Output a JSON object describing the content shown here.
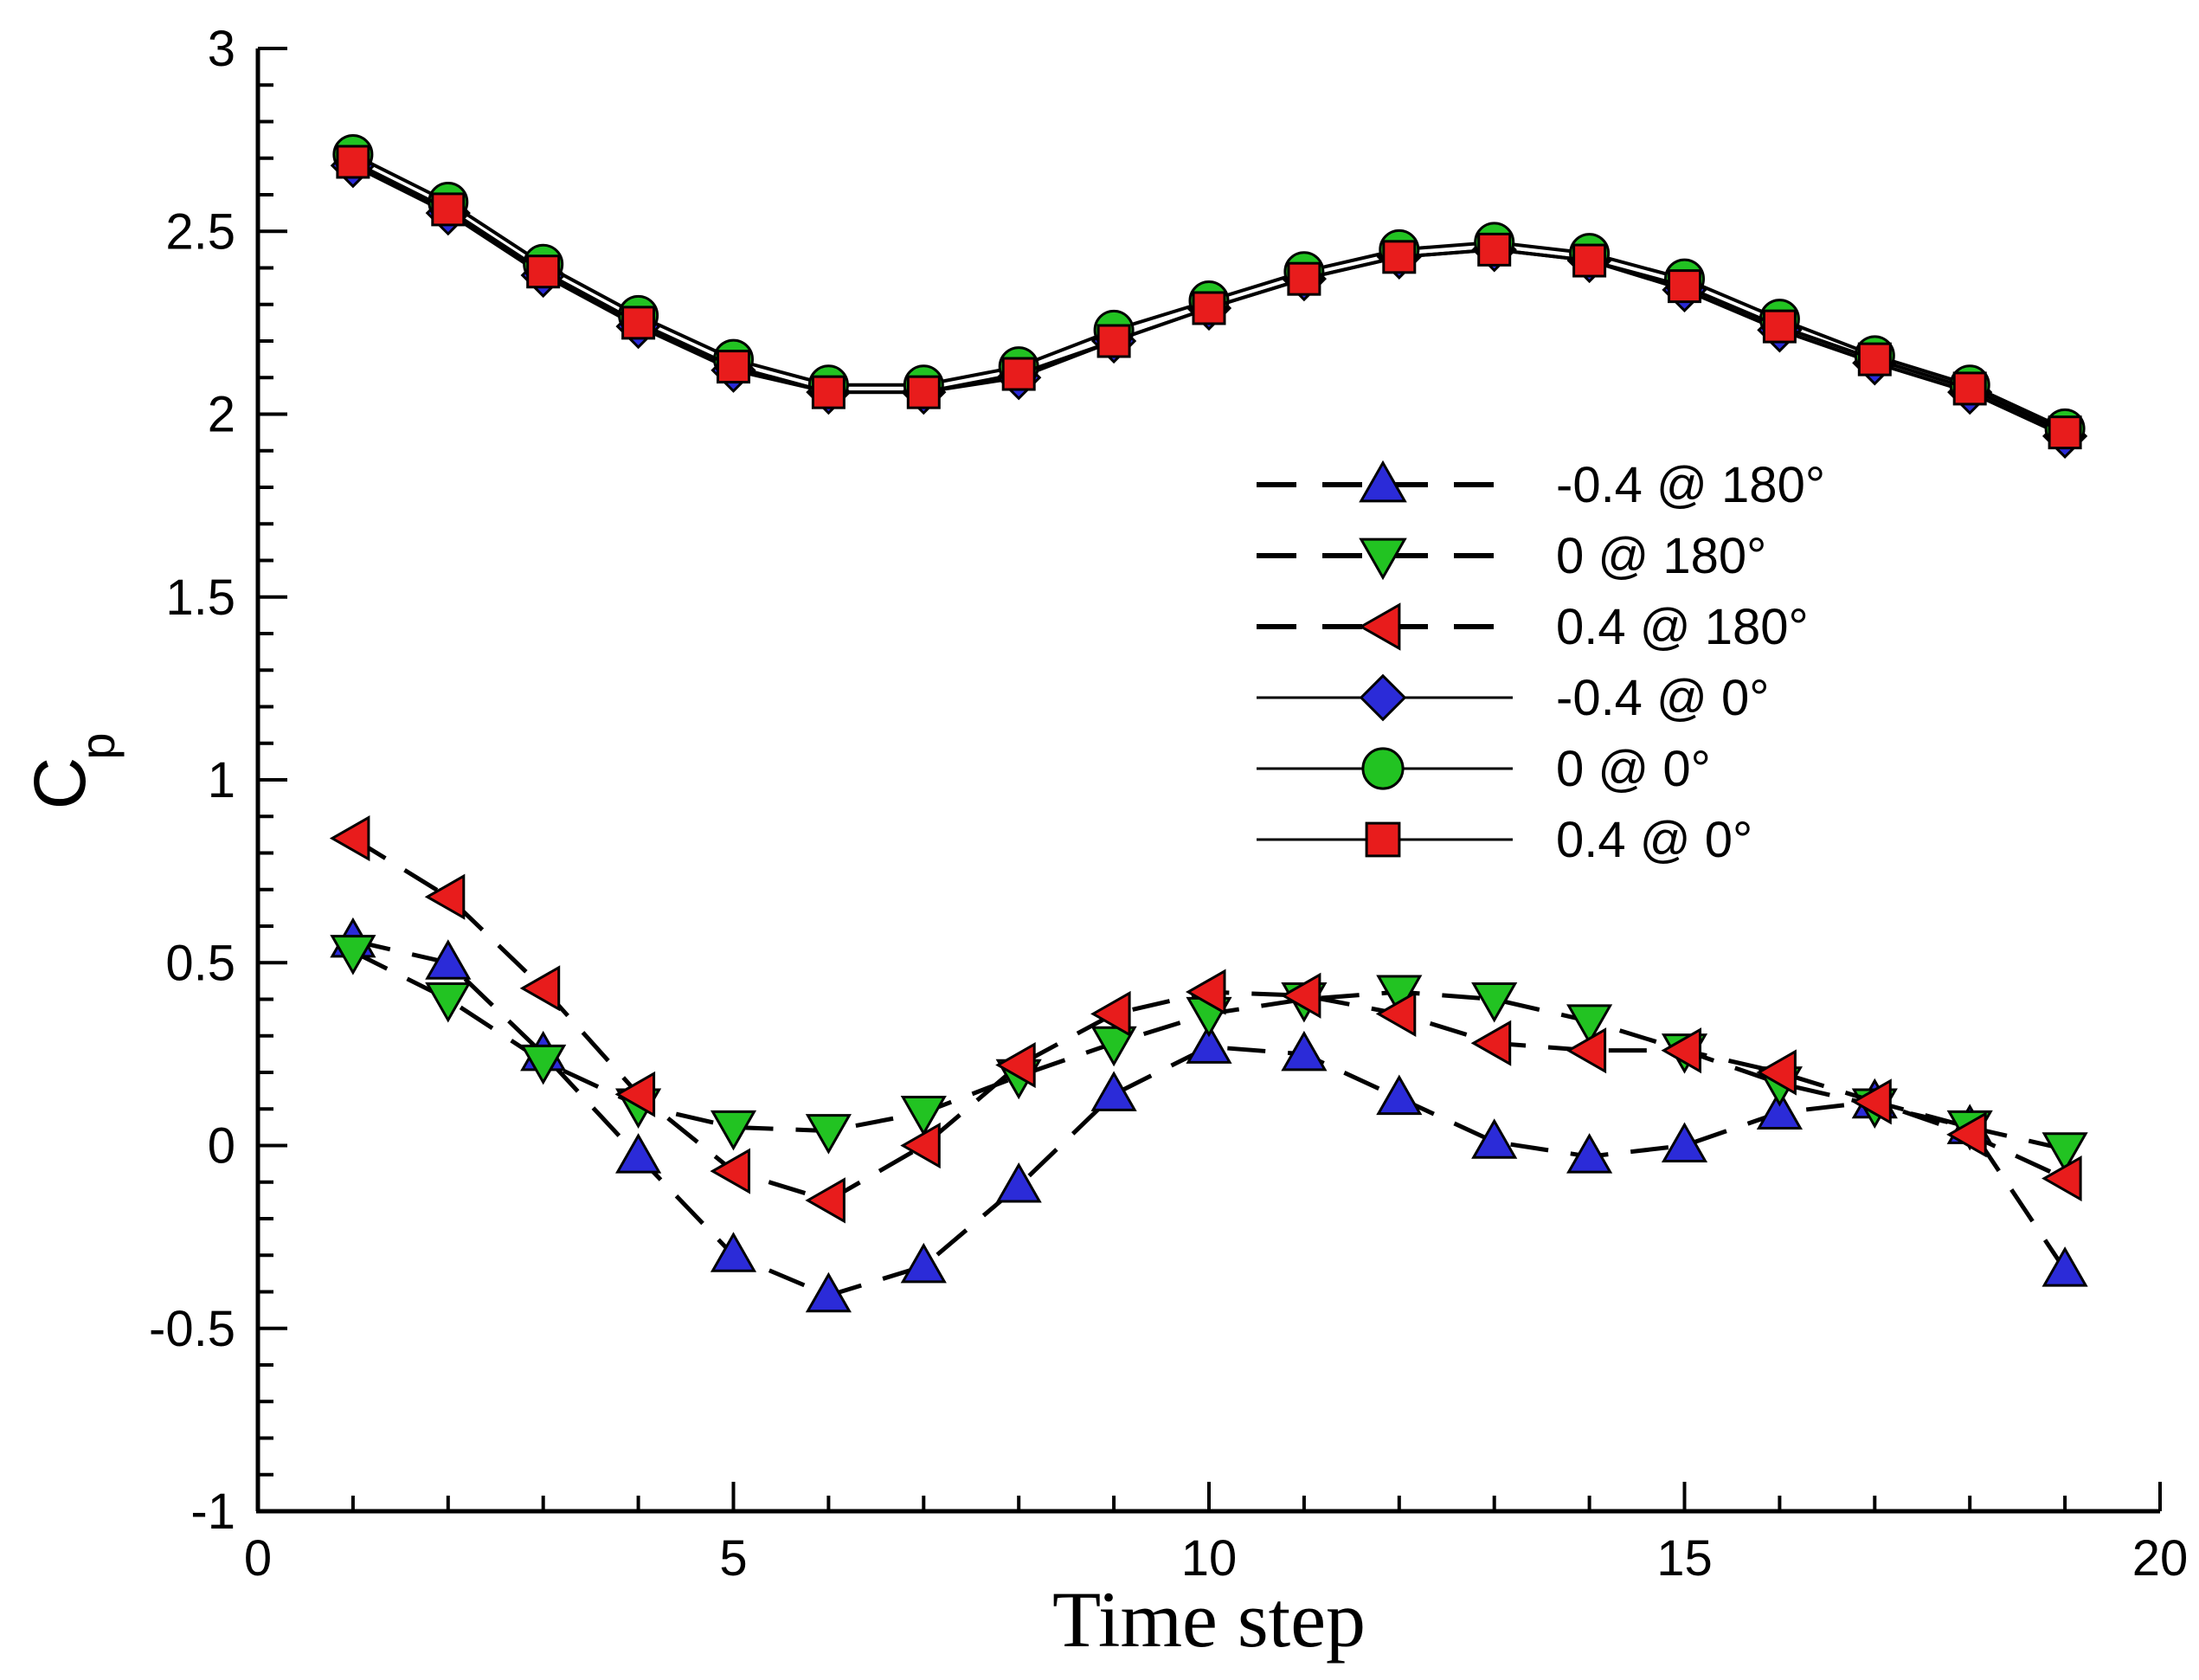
{
  "chart_data": {
    "type": "line",
    "title": "",
    "xlabel": "Time step",
    "ylabel": "C",
    "ylabel_subscript": "p",
    "xlim": [
      0,
      20
    ],
    "ylim": [
      -1,
      3
    ],
    "xticks": [
      0,
      5,
      10,
      15,
      20
    ],
    "xtick_labels": [
      "0",
      "5",
      "10",
      "15",
      "20"
    ],
    "yticks": [
      -1,
      -0.5,
      0,
      0.5,
      1,
      1.5,
      2,
      2.5,
      3
    ],
    "ytick_labels": [
      "-1",
      "-0.5",
      "0",
      "0.5",
      "1",
      "1.5",
      "2",
      "2.5",
      "3"
    ],
    "grid": false,
    "legend_position": "right-center",
    "x": [
      1,
      2,
      3,
      4,
      5,
      6,
      7,
      8,
      9,
      10,
      11,
      12,
      13,
      14,
      15,
      16,
      17,
      18,
      19
    ],
    "series": [
      {
        "name": "-0.4 @ 180°",
        "line": "dashed",
        "marker": "triangle-up",
        "color": "#2b2bd8",
        "values": [
          0.56,
          0.5,
          0.25,
          -0.03,
          -0.3,
          -0.41,
          -0.33,
          -0.11,
          0.14,
          0.27,
          0.25,
          0.13,
          0.01,
          -0.03,
          0.0,
          0.09,
          0.12,
          0.05,
          -0.34
        ]
      },
      {
        "name": "0 @ 180°",
        "line": "dashed",
        "marker": "triangle-down",
        "color": "#22c322",
        "values": [
          0.53,
          0.4,
          0.23,
          0.11,
          0.05,
          0.04,
          0.09,
          0.19,
          0.28,
          0.36,
          0.4,
          0.42,
          0.4,
          0.34,
          0.26,
          0.17,
          0.11,
          0.05,
          -0.01
        ]
      },
      {
        "name": "0.4 @ 180°",
        "line": "dashed",
        "marker": "triangle-left",
        "color": "#e81c1c",
        "values": [
          0.84,
          0.68,
          0.43,
          0.14,
          -0.07,
          -0.15,
          0.0,
          0.22,
          0.36,
          0.42,
          0.41,
          0.36,
          0.28,
          0.26,
          0.26,
          0.2,
          0.12,
          0.03,
          -0.09
        ]
      },
      {
        "name": "-0.4 @ 0°",
        "line": "solid",
        "marker": "diamond",
        "color": "#2b2bd8",
        "values": [
          2.68,
          2.55,
          2.38,
          2.24,
          2.12,
          2.06,
          2.06,
          2.1,
          2.2,
          2.29,
          2.37,
          2.43,
          2.45,
          2.42,
          2.34,
          2.23,
          2.14,
          2.06,
          1.94
        ]
      },
      {
        "name": "0 @ 0°",
        "line": "solid",
        "marker": "circle",
        "color": "#22c322",
        "values": [
          2.71,
          2.58,
          2.41,
          2.27,
          2.15,
          2.08,
          2.08,
          2.13,
          2.23,
          2.31,
          2.39,
          2.45,
          2.47,
          2.44,
          2.37,
          2.26,
          2.16,
          2.08,
          1.96
        ]
      },
      {
        "name": "0.4 @ 0°",
        "line": "solid",
        "marker": "square",
        "color": "#e81c1c",
        "values": [
          2.69,
          2.56,
          2.39,
          2.25,
          2.13,
          2.06,
          2.06,
          2.11,
          2.2,
          2.29,
          2.37,
          2.43,
          2.45,
          2.42,
          2.35,
          2.24,
          2.15,
          2.07,
          1.95
        ]
      }
    ]
  }
}
